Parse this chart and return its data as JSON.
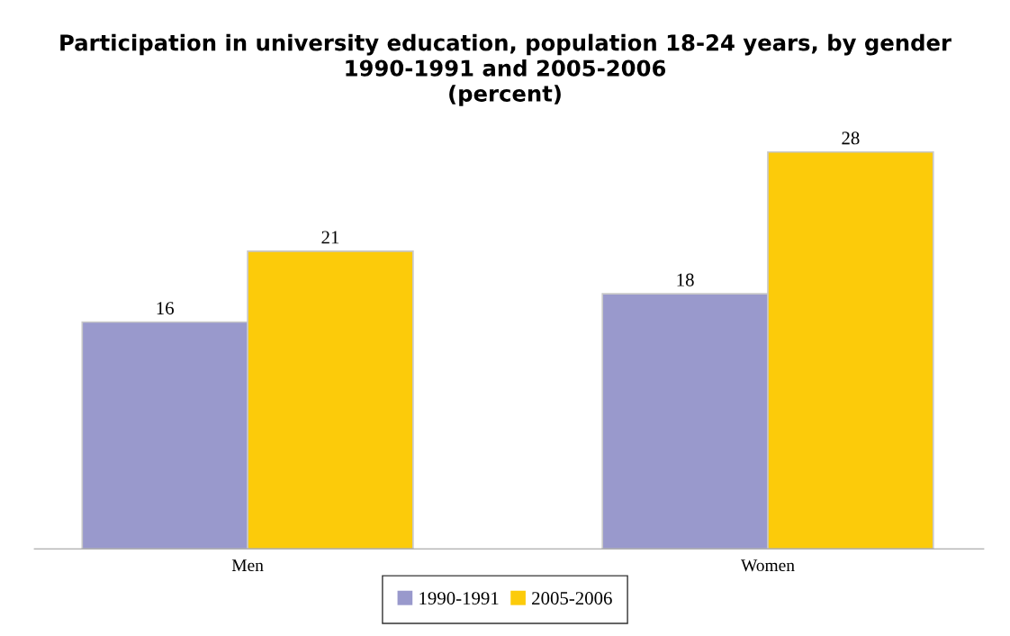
{
  "chart_data": {
    "type": "bar",
    "title": "Participation in university education, population 18-24 years, by gender\n1990-1991 and 2005-2006\n(percent)",
    "categories": [
      "Men",
      "Women"
    ],
    "series": [
      {
        "name": "1990-1991",
        "color": "#9999cc",
        "values": [
          16,
          18
        ]
      },
      {
        "name": "2005-2006",
        "color": "#fccb0a",
        "values": [
          21,
          28
        ]
      }
    ],
    "tick_labels": "x",
    "data_labels": true,
    "legend": "bottom",
    "grid": false
  }
}
